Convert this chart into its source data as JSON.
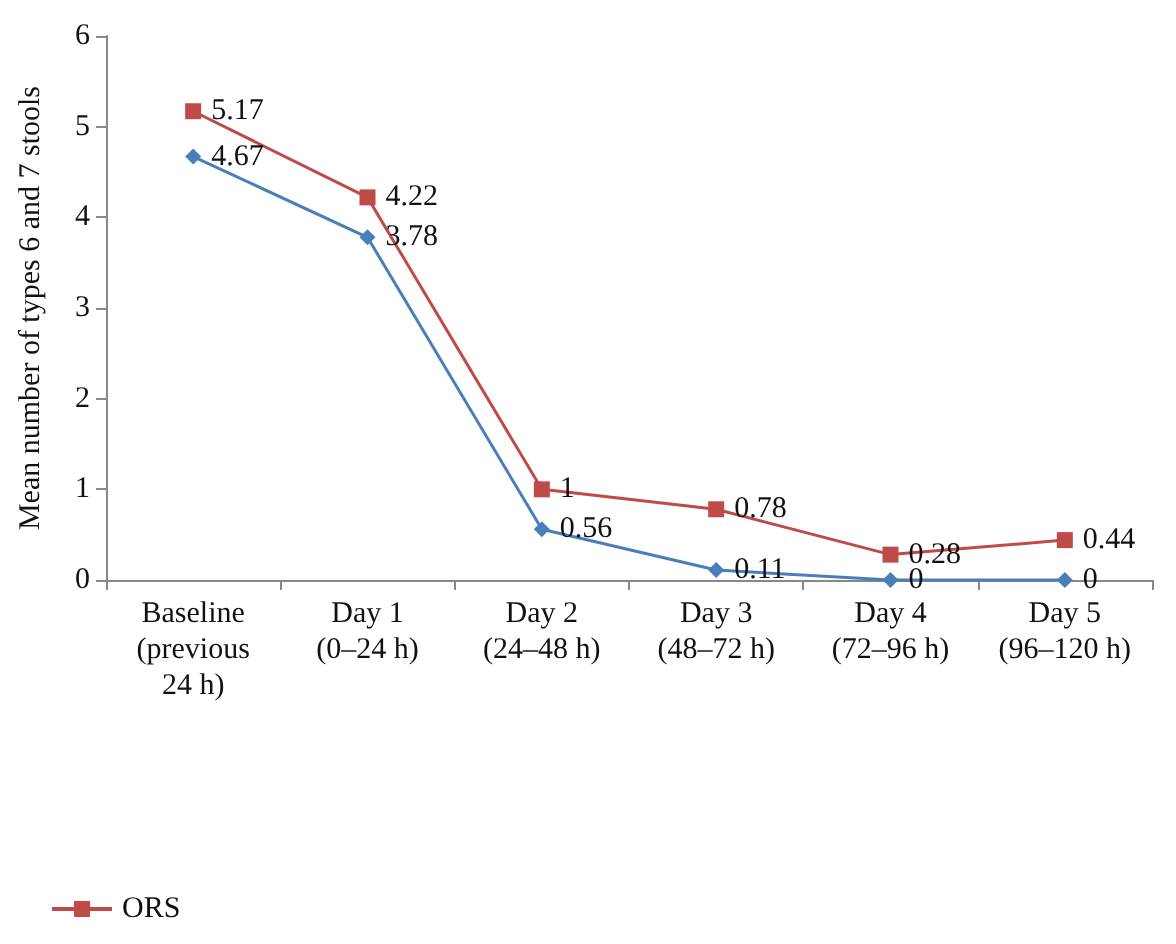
{
  "chart_data": {
    "type": "line",
    "ylabel": "Mean number of types 6 and 7 stools",
    "categories": [
      "Baseline\n(previous\n24 h)",
      "Day 1\n(0–24 h)",
      "Day 2\n(24–48 h)",
      "Day 3\n(48–72 h)",
      "Day 4\n(72–96 h)",
      "Day 5\n(96–120 h)"
    ],
    "series": [
      {
        "color": "#4a7ebb",
        "marker": "diamond",
        "values": [
          4.67,
          3.78,
          0.56,
          0.11,
          0,
          0
        ]
      },
      {
        "name": "ORS",
        "color": "#be4b48",
        "marker": "square",
        "values": [
          5.17,
          4.22,
          1,
          0.78,
          0.28,
          0.44
        ]
      }
    ],
    "ylim": [
      0,
      6
    ],
    "yticks": [
      0,
      1,
      2,
      3,
      4,
      5,
      6
    ],
    "grid": false,
    "legend": "bottom left",
    "data_labels": true,
    "line_style": "solid"
  }
}
